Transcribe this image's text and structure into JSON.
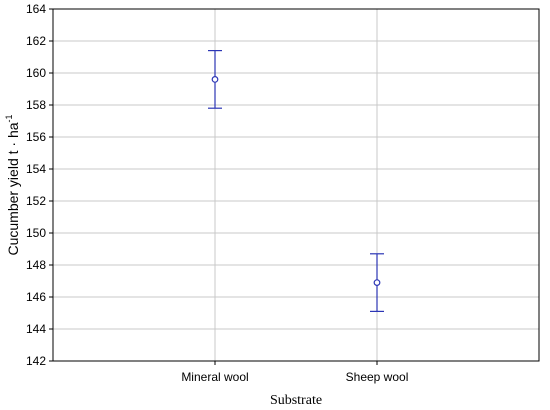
{
  "chart_data": {
    "type": "scatter",
    "title": "",
    "xlabel": "Substrate",
    "ylabel": "Cucumber yield t · ha",
    "ylabel_superscript": "-1",
    "categories": [
      "Mineral wool",
      "Sheep wool"
    ],
    "means": [
      159.6,
      146.9
    ],
    "upper": [
      161.4,
      148.7
    ],
    "lower": [
      157.8,
      145.1
    ],
    "ylim": [
      142,
      164
    ],
    "yticks": [
      142,
      144,
      146,
      148,
      150,
      152,
      154,
      156,
      158,
      160,
      162,
      164
    ],
    "grid": true,
    "series_color": "#2b35b5",
    "grid_color": "#c8c8c8"
  }
}
